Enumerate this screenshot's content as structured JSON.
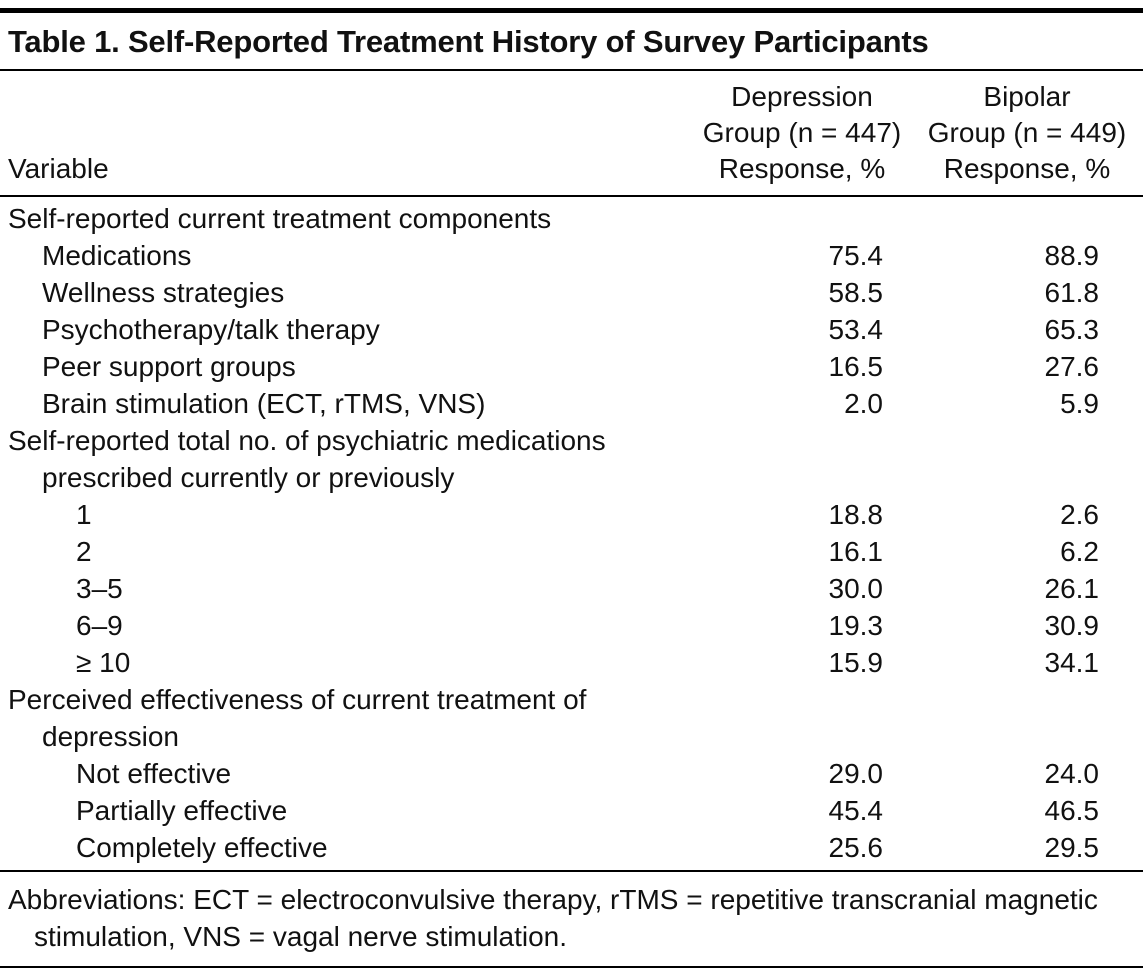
{
  "table": {
    "title": "Table 1. Self-Reported Treatment History of Survey Participants",
    "columns": {
      "variable": "Variable",
      "depression": {
        "line1": "Depression",
        "line2": "Group (n = 447)",
        "line3": "Response, %"
      },
      "bipolar": {
        "line1": "Bipolar",
        "line2": "Group (n = 449)",
        "line3": "Response, %"
      }
    },
    "rows": [
      {
        "label": "Self-reported current treatment components",
        "indent": 0
      },
      {
        "label": "Medications",
        "indent": 1,
        "depression": "75.4",
        "bipolar": "88.9"
      },
      {
        "label": "Wellness strategies",
        "indent": 1,
        "depression": "58.5",
        "bipolar": "61.8"
      },
      {
        "label": "Psychotherapy/talk therapy",
        "indent": 1,
        "depression": "53.4",
        "bipolar": "65.3"
      },
      {
        "label": "Peer support groups",
        "indent": 1,
        "depression": "16.5",
        "bipolar": "27.6"
      },
      {
        "label": "Brain stimulation (ECT, rTMS, VNS)",
        "indent": 1,
        "depression": "2.0",
        "bipolar": "5.9"
      },
      {
        "label": "Self-reported total no. of psychiatric medications",
        "indent": 0
      },
      {
        "label": "prescribed currently or previously",
        "indent": 1
      },
      {
        "label": "1",
        "indent": 2,
        "depression": "18.8",
        "bipolar": "2.6"
      },
      {
        "label": "2",
        "indent": 2,
        "depression": "16.1",
        "bipolar": "6.2"
      },
      {
        "label": "3–5",
        "indent": 2,
        "depression": "30.0",
        "bipolar": "26.1"
      },
      {
        "label": "6–9",
        "indent": 2,
        "depression": "19.3",
        "bipolar": "30.9"
      },
      {
        "label": "≥ 10",
        "indent": 2,
        "depression": "15.9",
        "bipolar": "34.1"
      },
      {
        "label": "Perceived effectiveness of current treatment of",
        "indent": 0
      },
      {
        "label": "depression",
        "indent": 1
      },
      {
        "label": "Not effective",
        "indent": 2,
        "depression": "29.0",
        "bipolar": "24.0"
      },
      {
        "label": "Partially effective",
        "indent": 2,
        "depression": "45.4",
        "bipolar": "46.5"
      },
      {
        "label": "Completely effective",
        "indent": 2,
        "depression": "25.6",
        "bipolar": "29.5"
      }
    ],
    "footnote": "Abbreviations: ECT = electroconvulsive therapy, rTMS = repetitive transcranial magnetic stimulation, VNS = vagal nerve stimulation."
  },
  "chart_data": {
    "type": "table",
    "title": "Table 1. Self-Reported Treatment History of Survey Participants",
    "columns": [
      "Variable",
      "Depression Group (n = 447) Response, %",
      "Bipolar Group (n = 449) Response, %"
    ],
    "series": [
      {
        "name": "Depression Group (n = 447)",
        "values": [
          75.4,
          58.5,
          53.4,
          16.5,
          2.0,
          18.8,
          16.1,
          30.0,
          19.3,
          15.9,
          29.0,
          45.4,
          25.6
        ]
      },
      {
        "name": "Bipolar Group (n = 449)",
        "values": [
          88.9,
          61.8,
          65.3,
          27.6,
          5.9,
          2.6,
          6.2,
          26.1,
          30.9,
          34.1,
          24.0,
          46.5,
          29.5
        ]
      }
    ],
    "categories": [
      "Medications",
      "Wellness strategies",
      "Psychotherapy/talk therapy",
      "Peer support groups",
      "Brain stimulation (ECT, rTMS, VNS)",
      "1 medication",
      "2 medications",
      "3–5 medications",
      "6–9 medications",
      "≥ 10 medications",
      "Not effective",
      "Partially effective",
      "Completely effective"
    ]
  }
}
